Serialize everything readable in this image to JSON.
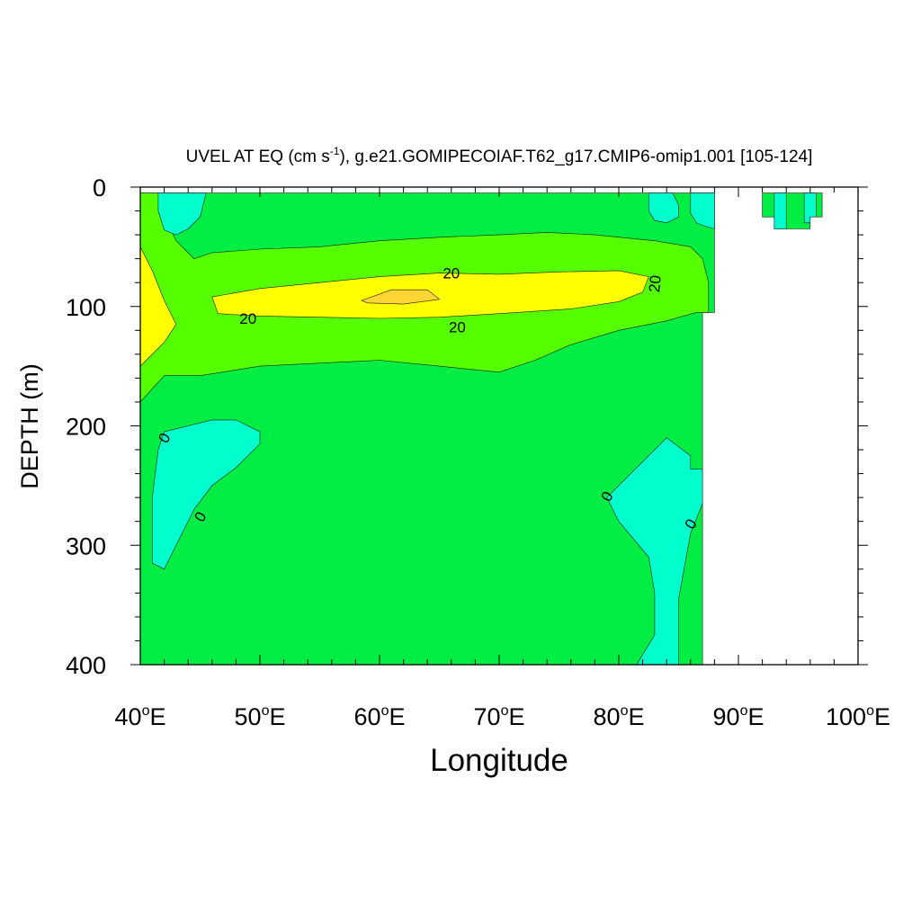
{
  "chart_data": {
    "type": "contour",
    "title_main": "UVEL AT EQ (cm s",
    "title_sup": "-1",
    "title_rest": "), g.e21.GOMIPECOIAF.T62_g17.CMIP6-omip1.001 [105-124]",
    "xlabel": "Longitude",
    "ylabel": "DEPTH (m)",
    "xlim": [
      40,
      100
    ],
    "ylim": [
      400,
      0
    ],
    "x_ticks": [
      {
        "value": 40,
        "num": "40",
        "deg": "o",
        "dir": "E"
      },
      {
        "value": 50,
        "num": "50",
        "deg": "o",
        "dir": "E"
      },
      {
        "value": 60,
        "num": "60",
        "deg": "o",
        "dir": "E"
      },
      {
        "value": 70,
        "num": "70",
        "deg": "o",
        "dir": "E"
      },
      {
        "value": 80,
        "num": "80",
        "deg": "o",
        "dir": "E"
      },
      {
        "value": 90,
        "num": "90",
        "deg": "o",
        "dir": "E"
      },
      {
        "value": 100,
        "num": "100",
        "deg": "o",
        "dir": "E"
      }
    ],
    "y_ticks": [
      {
        "value": 0,
        "label": "0"
      },
      {
        "value": 100,
        "label": "100"
      },
      {
        "value": 200,
        "label": "200"
      },
      {
        "value": 300,
        "label": "300"
      },
      {
        "value": 400,
        "label": "400"
      }
    ],
    "fill_colors": {
      "below_0": "#00ffcc",
      "0_to_10": "#00ee44",
      "10_to_20": "#55ff00",
      "20_to_30": "#ffff00",
      "30_to_40": "#ffd633"
    },
    "regions": [
      {
        "name": "region-0-10",
        "color": "#00ee44",
        "points": [
          [
            40,
            5
          ],
          [
            88,
            5
          ],
          [
            88,
            105
          ],
          [
            87,
            105
          ],
          [
            87,
            400
          ],
          [
            40,
            400
          ]
        ]
      },
      {
        "name": "region-0-10-east",
        "color": "#00ee44",
        "points": [
          [
            92,
            5
          ],
          [
            97,
            5
          ],
          [
            97,
            25
          ],
          [
            96,
            25
          ],
          [
            96,
            35
          ],
          [
            93,
            35
          ],
          [
            93,
            25
          ],
          [
            92,
            25
          ]
        ]
      },
      {
        "name": "region-10-20",
        "color": "#55ff00",
        "points": [
          [
            40,
            5
          ],
          [
            41.5,
            5
          ],
          [
            42,
            25
          ],
          [
            43,
            45
          ],
          [
            44.5,
            60
          ],
          [
            46,
            55
          ],
          [
            50,
            52
          ],
          [
            55,
            50
          ],
          [
            60,
            45
          ],
          [
            65,
            42
          ],
          [
            70,
            40
          ],
          [
            74,
            38
          ],
          [
            78,
            40
          ],
          [
            83,
            45
          ],
          [
            86,
            50
          ],
          [
            87,
            60
          ],
          [
            87.5,
            80
          ],
          [
            87.5,
            105
          ],
          [
            86.5,
            105
          ],
          [
            84,
            112
          ],
          [
            80,
            120
          ],
          [
            76,
            132
          ],
          [
            73,
            145
          ],
          [
            70,
            155
          ],
          [
            65,
            150
          ],
          [
            60,
            145
          ],
          [
            50,
            150
          ],
          [
            45,
            158
          ],
          [
            42,
            158
          ],
          [
            40,
            180
          ]
        ]
      },
      {
        "name": "region-20-30",
        "color": "#ffff00",
        "points": [
          [
            40,
            50
          ],
          [
            41,
            70
          ],
          [
            42,
            95
          ],
          [
            43,
            115
          ],
          [
            42,
            130
          ],
          [
            40,
            150
          ]
        ]
      },
      {
        "name": "region-20-30-core",
        "color": "#ffff00",
        "points": [
          [
            46,
            92
          ],
          [
            50,
            85
          ],
          [
            55,
            80
          ],
          [
            60,
            75
          ],
          [
            65,
            72
          ],
          [
            70,
            73
          ],
          [
            75,
            71
          ],
          [
            80,
            70
          ],
          [
            82.5,
            75
          ],
          [
            82,
            88
          ],
          [
            80,
            96
          ],
          [
            76,
            102
          ],
          [
            70,
            106
          ],
          [
            65,
            109
          ],
          [
            60,
            110
          ],
          [
            55,
            109
          ],
          [
            50,
            108
          ],
          [
            46.5,
            106
          ]
        ]
      },
      {
        "name": "region-30-40",
        "color": "#ffd633",
        "points": [
          [
            58.5,
            95
          ],
          [
            61,
            86
          ],
          [
            64,
            86
          ],
          [
            65,
            94
          ],
          [
            62,
            98
          ],
          [
            59,
            97
          ]
        ]
      },
      {
        "name": "region-neg-nw",
        "color": "#00ffcc",
        "points": [
          [
            41.5,
            5
          ],
          [
            45.5,
            5
          ],
          [
            45,
            25
          ],
          [
            44,
            35
          ],
          [
            43,
            40
          ],
          [
            42,
            36
          ],
          [
            41.5,
            20
          ]
        ]
      },
      {
        "name": "region-neg-ne1",
        "color": "#00ffcc",
        "points": [
          [
            82.5,
            5
          ],
          [
            84.5,
            5
          ],
          [
            85,
            15
          ],
          [
            85,
            25
          ],
          [
            84,
            30
          ],
          [
            83,
            28
          ],
          [
            82.5,
            20
          ]
        ]
      },
      {
        "name": "region-neg-ne2",
        "color": "#00ffcc",
        "points": [
          [
            86,
            5
          ],
          [
            88,
            5
          ],
          [
            88,
            35
          ],
          [
            87,
            32
          ],
          [
            86.5,
            30
          ],
          [
            86,
            22
          ]
        ]
      },
      {
        "name": "region-neg-east1",
        "color": "#00ffcc",
        "points": [
          [
            93,
            5
          ],
          [
            94,
            5
          ],
          [
            94,
            35
          ],
          [
            93,
            35
          ],
          [
            93,
            25
          ]
        ]
      },
      {
        "name": "region-neg-east2",
        "color": "#00ffcc",
        "points": [
          [
            95.5,
            5
          ],
          [
            96.5,
            5
          ],
          [
            96.5,
            25
          ],
          [
            96,
            25
          ],
          [
            96,
            30
          ],
          [
            95.5,
            30
          ]
        ]
      },
      {
        "name": "region-neg-w",
        "color": "#00ffcc",
        "points": [
          [
            42,
            205
          ],
          [
            44,
            200
          ],
          [
            46,
            195
          ],
          [
            48,
            195
          ],
          [
            50,
            205
          ],
          [
            50,
            215
          ],
          [
            48,
            235
          ],
          [
            46,
            250
          ],
          [
            44.5,
            270
          ],
          [
            43,
            300
          ],
          [
            42,
            320
          ],
          [
            41,
            315
          ],
          [
            41,
            260
          ],
          [
            41.5,
            220
          ]
        ]
      },
      {
        "name": "region-neg-e",
        "color": "#00ffcc",
        "points": [
          [
            79,
            260
          ],
          [
            81,
            240
          ],
          [
            84,
            210
          ],
          [
            86,
            225
          ],
          [
            86,
            236
          ],
          [
            87,
            236
          ],
          [
            87,
            265
          ],
          [
            86,
            290
          ],
          [
            85,
            345
          ],
          [
            85,
            400
          ],
          [
            81.5,
            400
          ],
          [
            83,
            375
          ],
          [
            83,
            340
          ],
          [
            82.5,
            310
          ],
          [
            80,
            280
          ]
        ]
      }
    ],
    "contour_labels": [
      {
        "text": "20",
        "x": 66,
        "y": 72,
        "rotate": 0
      },
      {
        "text": "20",
        "x": 49,
        "y": 110,
        "rotate": 0
      },
      {
        "text": "20",
        "x": 66.5,
        "y": 117,
        "rotate": 0
      },
      {
        "text": "20",
        "x": 83,
        "y": 81,
        "rotate": -85
      },
      {
        "text": "0",
        "x": 42,
        "y": 210,
        "rotate": -60
      },
      {
        "text": "0",
        "x": 45,
        "y": 276,
        "rotate": -60
      },
      {
        "text": "0",
        "x": 79,
        "y": 259,
        "rotate": -60
      },
      {
        "text": "0",
        "x": 86,
        "y": 282,
        "rotate": -60
      }
    ]
  }
}
